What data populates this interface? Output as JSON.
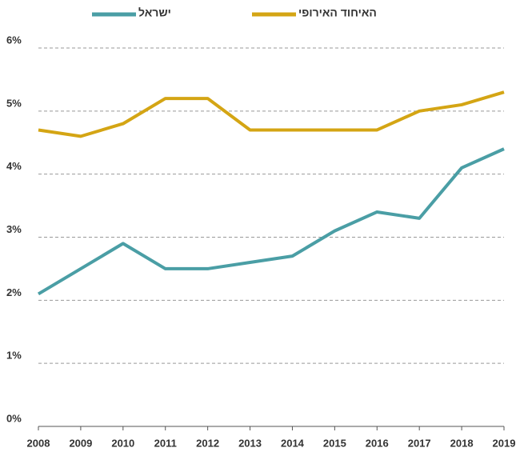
{
  "chart_data": {
    "type": "line",
    "categories": [
      "2008",
      "2009",
      "2010",
      "2011",
      "2012",
      "2013",
      "2014",
      "2015",
      "2016",
      "2017",
      "2018",
      "2019"
    ],
    "series": [
      {
        "name": "ישראל",
        "color": "#4a9ea5",
        "values": [
          2.1,
          2.5,
          2.9,
          2.5,
          2.5,
          2.6,
          2.7,
          3.1,
          3.4,
          3.3,
          4.1,
          4.4
        ]
      },
      {
        "name": "האיחוד האירופי",
        "color": "#d4a514",
        "values": [
          4.7,
          4.6,
          4.8,
          5.2,
          5.2,
          4.7,
          4.7,
          4.7,
          4.7,
          5.0,
          5.1,
          5.3
        ]
      }
    ],
    "ylim": [
      0,
      6
    ],
    "yticks": [
      {
        "value": 0,
        "label": "0%"
      },
      {
        "value": 1,
        "label": "1%"
      },
      {
        "value": 2,
        "label": "2%"
      },
      {
        "value": 3,
        "label": "3%"
      },
      {
        "value": 4,
        "label": "4%"
      },
      {
        "value": 5,
        "label": "5%"
      },
      {
        "value": 6,
        "label": "6%"
      }
    ],
    "grid": true,
    "legend": "top"
  }
}
